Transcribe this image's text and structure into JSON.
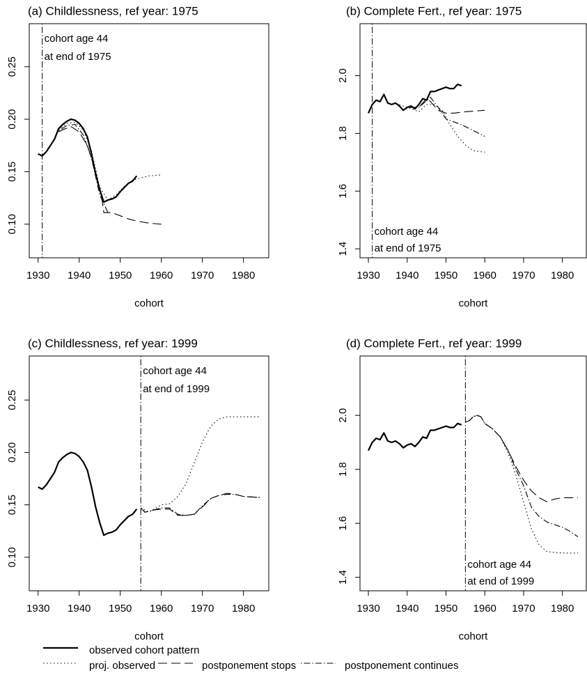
{
  "chart_data": [
    {
      "type": "line",
      "title": "(a) Childlessness, ref year: 1975",
      "xlabel": "cohort",
      "xlim": [
        1927.84,
        1986.16
      ],
      "xticks": [
        1930,
        1940,
        1950,
        1960,
        1970,
        1980
      ],
      "ylim": [
        0.068,
        0.291
      ],
      "yticks": [
        {
          "value": 0.1,
          "label": "0.10"
        },
        0.15,
        {
          "value": 0.2,
          "label": "0.20"
        },
        0.25
      ],
      "annotation": {
        "x": 1931,
        "lines": [
          "cohort age 44",
          "at end of 1975"
        ],
        "position": "top"
      },
      "series": [
        {
          "style": "solid",
          "x": [
            1930,
            1931,
            1932,
            1933,
            1934,
            1935,
            1936,
            1937,
            1938,
            1939,
            1940,
            1941,
            1942,
            1943,
            1944,
            1945,
            1946,
            1947,
            1948,
            1949,
            1950,
            1951,
            1952,
            1953,
            1954
          ],
          "values": [
            0.167,
            0.165,
            0.169,
            0.175,
            0.181,
            0.191,
            0.195,
            0.198,
            0.2,
            0.199,
            0.196,
            0.191,
            0.183,
            0.167,
            0.148,
            0.133,
            0.121,
            0.123,
            0.124,
            0.126,
            0.131,
            0.135,
            0.139,
            0.141,
            0.146
          ]
        },
        {
          "style": "dotted",
          "x": [
            1935,
            1937,
            1939,
            1941,
            1943,
            1945,
            1947,
            1949,
            1951,
            1953,
            1955,
            1957,
            1960
          ],
          "values": [
            0.19,
            0.196,
            0.197,
            0.19,
            0.17,
            0.135,
            0.123,
            0.128,
            0.136,
            0.142,
            0.144,
            0.146,
            0.147
          ]
        },
        {
          "style": "dashed",
          "x": [
            1935,
            1936,
            1938,
            1940,
            1942,
            1944,
            1945.5,
            1946,
            1948,
            1950,
            1952,
            1954,
            1957,
            1960
          ],
          "values": [
            0.188,
            0.19,
            0.193,
            0.188,
            0.175,
            0.15,
            0.125,
            0.111,
            0.111,
            0.108,
            0.105,
            0.103,
            0.101,
            0.1
          ]
        },
        {
          "style": "dashdot",
          "x": [
            1935,
            1937,
            1939,
            1941,
            1943,
            1945,
            1947
          ],
          "values": [
            0.189,
            0.194,
            0.195,
            0.185,
            0.163,
            0.128,
            0.111
          ]
        }
      ]
    },
    {
      "type": "line",
      "title": "(b) Complete Fert., ref year: 1975",
      "xlabel": "cohort",
      "xlim": [
        1927.84,
        1986.16
      ],
      "xticks": [
        1930,
        1940,
        1950,
        1960,
        1970,
        1980
      ],
      "ylim": [
        1.369,
        2.18
      ],
      "yticks": [
        1.4,
        1.6,
        1.8,
        {
          "value": 2.0,
          "label": "2.0"
        }
      ],
      "annotation": {
        "x": 1931,
        "lines": [
          "cohort age 44",
          "at end of 1975"
        ],
        "position": "bottom"
      },
      "series": [
        {
          "style": "solid",
          "x": [
            1930,
            1931,
            1932,
            1933,
            1934,
            1935,
            1936,
            1937,
            1938,
            1939,
            1940,
            1941,
            1942,
            1943,
            1944,
            1945,
            1946,
            1947,
            1948,
            1949,
            1950,
            1951,
            1952,
            1953,
            1954
          ],
          "values": [
            1.87,
            1.9,
            1.915,
            1.91,
            1.935,
            1.905,
            1.9,
            1.905,
            1.895,
            1.88,
            1.89,
            1.895,
            1.885,
            1.9,
            1.92,
            1.915,
            1.945,
            1.945,
            1.95,
            1.955,
            1.96,
            1.955,
            1.955,
            1.97,
            1.965
          ]
        },
        {
          "style": "dotted",
          "x": [
            1938,
            1941,
            1943,
            1945,
            1947,
            1949,
            1951,
            1953,
            1955,
            1957,
            1960
          ],
          "values": [
            1.9,
            1.885,
            1.875,
            1.9,
            1.9,
            1.88,
            1.83,
            1.79,
            1.76,
            1.74,
            1.735
          ]
        },
        {
          "style": "dashed",
          "x": [
            1940,
            1943,
            1945,
            1946,
            1948,
            1950,
            1952,
            1955,
            1960
          ],
          "values": [
            1.89,
            1.89,
            1.92,
            1.91,
            1.88,
            1.87,
            1.87,
            1.875,
            1.88
          ]
        },
        {
          "style": "dashdot",
          "x": [
            1940,
            1943,
            1946,
            1948,
            1950,
            1952,
            1954,
            1957,
            1960
          ],
          "values": [
            1.89,
            1.89,
            1.925,
            1.89,
            1.85,
            1.84,
            1.83,
            1.81,
            1.79
          ]
        }
      ]
    },
    {
      "type": "line",
      "title": "(c) Childlessness, ref year: 1999",
      "xlabel": "cohort",
      "xlim": [
        1927.84,
        1986.16
      ],
      "xticks": [
        1930,
        1940,
        1950,
        1960,
        1970,
        1980
      ],
      "ylim": [
        0.068,
        0.292
      ],
      "yticks": [
        {
          "value": 0.1,
          "label": "0.10"
        },
        0.15,
        {
          "value": 0.2,
          "label": "0.20"
        },
        0.25
      ],
      "annotation": {
        "x": 1955,
        "lines": [
          "cohort age 44",
          "at end of 1999"
        ],
        "position": "top"
      },
      "series": [
        {
          "style": "solid",
          "x": [
            1930,
            1931,
            1932,
            1933,
            1934,
            1935,
            1936,
            1937,
            1938,
            1939,
            1940,
            1941,
            1942,
            1943,
            1944,
            1945,
            1946,
            1947,
            1948,
            1949,
            1950,
            1951,
            1952,
            1953,
            1954
          ],
          "values": [
            0.167,
            0.165,
            0.169,
            0.175,
            0.181,
            0.191,
            0.195,
            0.198,
            0.2,
            0.199,
            0.196,
            0.191,
            0.183,
            0.167,
            0.148,
            0.133,
            0.121,
            0.123,
            0.124,
            0.126,
            0.131,
            0.135,
            0.139,
            0.141,
            0.146
          ]
        },
        {
          "style": "dotted",
          "x": [
            1955,
            1957,
            1960,
            1962,
            1964,
            1966,
            1968,
            1970,
            1972,
            1974,
            1976,
            1984
          ],
          "values": [
            0.147,
            0.143,
            0.15,
            0.151,
            0.158,
            0.17,
            0.19,
            0.21,
            0.225,
            0.232,
            0.234,
            0.234
          ]
        },
        {
          "style": "dashed",
          "x": [
            1955,
            1956,
            1958,
            1960,
            1962,
            1964,
            1966,
            1968,
            1970,
            1972,
            1974,
            1976,
            1978,
            1980,
            1984
          ],
          "values": [
            0.147,
            0.143,
            0.145,
            0.146,
            0.146,
            0.14,
            0.14,
            0.141,
            0.148,
            0.156,
            0.159,
            0.161,
            0.16,
            0.158,
            0.157
          ]
        },
        {
          "style": "dashdot",
          "x": [
            1955,
            1956,
            1958,
            1960,
            1962,
            1964,
            1966,
            1968,
            1970,
            1972,
            1974,
            1976,
            1978,
            1980,
            1984
          ],
          "values": [
            0.147,
            0.143,
            0.145,
            0.147,
            0.147,
            0.141,
            0.14,
            0.141,
            0.149,
            0.156,
            0.159,
            0.16,
            0.16,
            0.158,
            0.157
          ]
        }
      ]
    },
    {
      "type": "line",
      "title": "(d) Complete Fert., ref year: 1999",
      "xlabel": "cohort",
      "xlim": [
        1927.84,
        1986.16
      ],
      "xticks": [
        1930,
        1940,
        1950,
        1960,
        1970,
        1980
      ],
      "ylim": [
        1.35,
        2.22
      ],
      "yticks": [
        1.4,
        1.6,
        1.8,
        {
          "value": 2.0,
          "label": "2.0"
        }
      ],
      "annotation": {
        "x": 1955,
        "lines": [
          "cohort age 44",
          "at end of 1999"
        ],
        "position": "bottom"
      },
      "series": [
        {
          "style": "solid",
          "x": [
            1930,
            1931,
            1932,
            1933,
            1934,
            1935,
            1936,
            1937,
            1938,
            1939,
            1940,
            1941,
            1942,
            1943,
            1944,
            1945,
            1946,
            1947,
            1948,
            1949,
            1950,
            1951,
            1952,
            1953,
            1954
          ],
          "values": [
            1.87,
            1.9,
            1.915,
            1.91,
            1.935,
            1.905,
            1.9,
            1.905,
            1.895,
            1.88,
            1.89,
            1.895,
            1.885,
            1.9,
            1.92,
            1.915,
            1.945,
            1.945,
            1.95,
            1.955,
            1.96,
            1.955,
            1.955,
            1.97,
            1.965
          ]
        },
        {
          "style": "dotted",
          "x": [
            1955,
            1956,
            1957,
            1958,
            1959,
            1960,
            1962,
            1964,
            1966,
            1968,
            1970,
            1972,
            1974,
            1976,
            1980,
            1984
          ],
          "values": [
            1.975,
            1.98,
            1.995,
            2.0,
            1.995,
            1.97,
            1.95,
            1.92,
            1.86,
            1.78,
            1.68,
            1.58,
            1.52,
            1.495,
            1.49,
            1.49
          ]
        },
        {
          "style": "dashed",
          "x": [
            1955,
            1956,
            1957,
            1958,
            1959,
            1960,
            1962,
            1964,
            1966,
            1968,
            1970,
            1972,
            1974,
            1976,
            1978,
            1980,
            1984
          ],
          "values": [
            1.975,
            1.98,
            1.995,
            2.0,
            1.995,
            1.97,
            1.95,
            1.92,
            1.87,
            1.81,
            1.76,
            1.72,
            1.695,
            1.68,
            1.69,
            1.695,
            1.695
          ]
        },
        {
          "style": "dashdot",
          "x": [
            1955,
            1956,
            1957,
            1958,
            1959,
            1960,
            1962,
            1964,
            1966,
            1968,
            1970,
            1972,
            1974,
            1976,
            1978,
            1980,
            1982,
            1984
          ],
          "values": [
            1.975,
            1.98,
            1.995,
            2.0,
            1.995,
            1.97,
            1.95,
            1.92,
            1.87,
            1.8,
            1.74,
            1.66,
            1.625,
            1.605,
            1.595,
            1.585,
            1.57,
            1.55
          ]
        }
      ]
    }
  ],
  "legend": [
    {
      "label": "observed cohort pattern",
      "style": "solid"
    },
    {
      "label": "proj. observed",
      "style": "dotted"
    },
    {
      "label": "postponement stops",
      "style": "dashed"
    },
    {
      "label": "postponement continues",
      "style": "dashdot"
    }
  ]
}
